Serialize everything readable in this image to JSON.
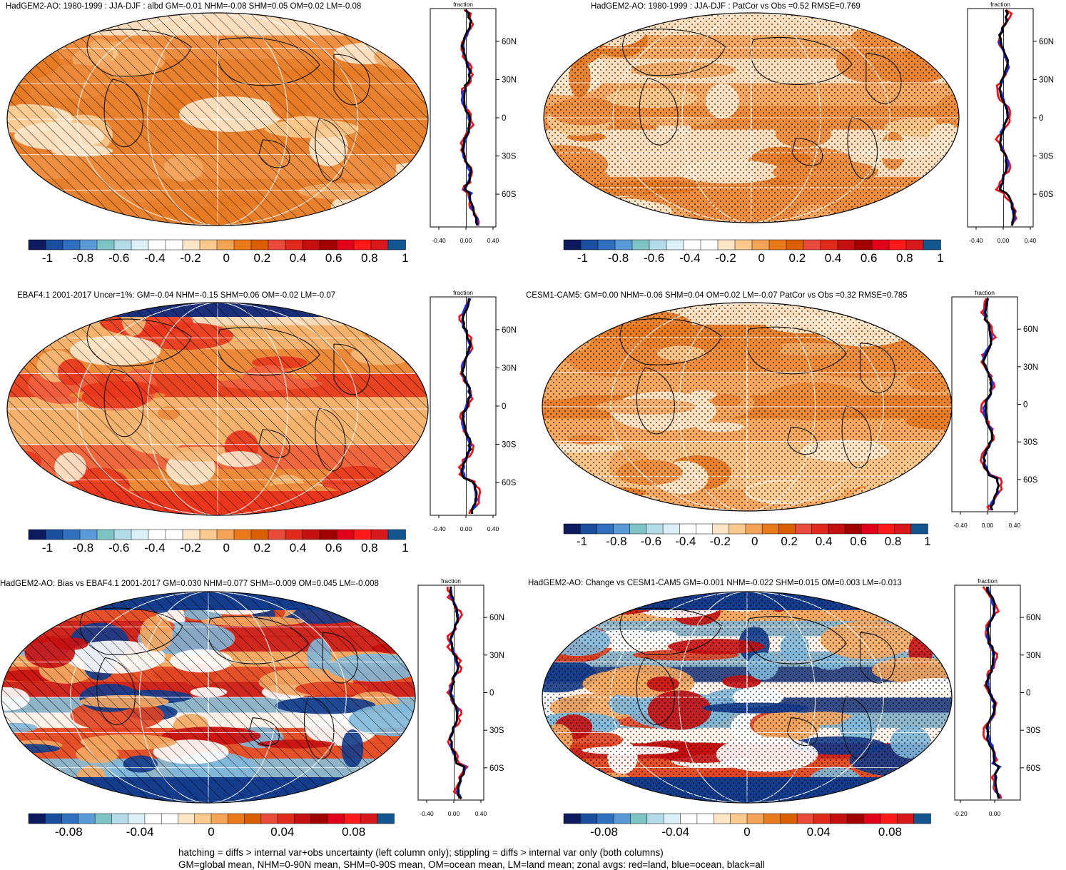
{
  "panels": [
    {
      "id": "p1",
      "title": "HadGEM2-AO: 1980-1999 : JJA-DJF : albd GM=-0.01 NHM=-0.08 SHM=0.05 OM=0.02 LM=-0.08",
      "overlay": "hatch",
      "scheme": "orange"
    },
    {
      "id": "p2",
      "title": "HadGEM2-AO: 1980-1999 : JJA-DJF : PatCor vs Obs =0.52 RMSE=0.769",
      "overlay": "stipple",
      "scheme": "orange"
    },
    {
      "id": "p3",
      "title": "EBAF4.1 2001-2017 Uncer=1%: GM=-0.04 NHM=-0.15 SHM=0.06 OM=-0.02 LM=-0.07",
      "overlay": "hatch",
      "scheme": "obs"
    },
    {
      "id": "p4",
      "title": "CESM1-CAM5: GM=0.00 NHM=-0.06 SHM=0.04 OM=0.02 LM=-0.07 PatCor vs Obs =0.32 RMSE=0.785",
      "overlay": "stipple",
      "scheme": "orange"
    },
    {
      "id": "p5",
      "title": "HadGEM2-AO: Bias vs EBAF4.1 2001-2017 GM=0.030 NHM=0.077 SHM=-0.009 OM=0.045 LM=-0.008",
      "overlay": "hatch",
      "scheme": "diff"
    },
    {
      "id": "p6",
      "title": "HadGEM2-AO: Change vs CESM1-CAM5 GM=-0.001 NHM=-0.022 SHM=0.015 OM=0.003 LM=-0.013",
      "overlay": "stipple",
      "scheme": "diff"
    }
  ],
  "zonal": {
    "title": "fraction",
    "lat_ticks": [
      "60N",
      "30N",
      "0",
      "30S",
      "60S"
    ],
    "x_ticks_a": [
      "-0.40",
      "0.00",
      "0.40"
    ],
    "x_ticks_b": [
      "-0.20",
      "0.00"
    ]
  },
  "colorbar": {
    "colors": [
      "#0d1b5e",
      "#1a4e9c",
      "#2f6fbd",
      "#5a9ad6",
      "#7fc4c4",
      "#b3dce8",
      "#dcf0f7",
      "#ffffff",
      "#ffffff",
      "#fde6c8",
      "#f9c98e",
      "#f3a456",
      "#e87a1c",
      "#d95f02",
      "#e84a3b",
      "#e02a1c",
      "#c40f10",
      "#a00000",
      "#e0001c",
      "#ff1a1a",
      "#d7191c",
      "#13558f"
    ],
    "ticks_full": [
      "-1",
      "-0.8",
      "-0.6",
      "-0.4",
      "-0.2",
      "0",
      "0.2",
      "0.4",
      "0.6",
      "0.8",
      "1"
    ],
    "ticks_diff": [
      "-0.08",
      "-0.04",
      "0",
      "0.04",
      "0.08"
    ]
  },
  "footnotes": [
    "hatching = diffs > internal var+obs uncertainty (left column only); stippling = diffs > internal var only (both columns)",
    "GM=global mean, NHM=0-90N mean, SHM=0-90S mean, OM=ocean mean, LM=land mean; zonal avgs: red=land, blue=ocean, black=all"
  ],
  "series_colors": {
    "land": "#e8161c",
    "ocean": "#1a2fe0",
    "all": "#000000"
  }
}
